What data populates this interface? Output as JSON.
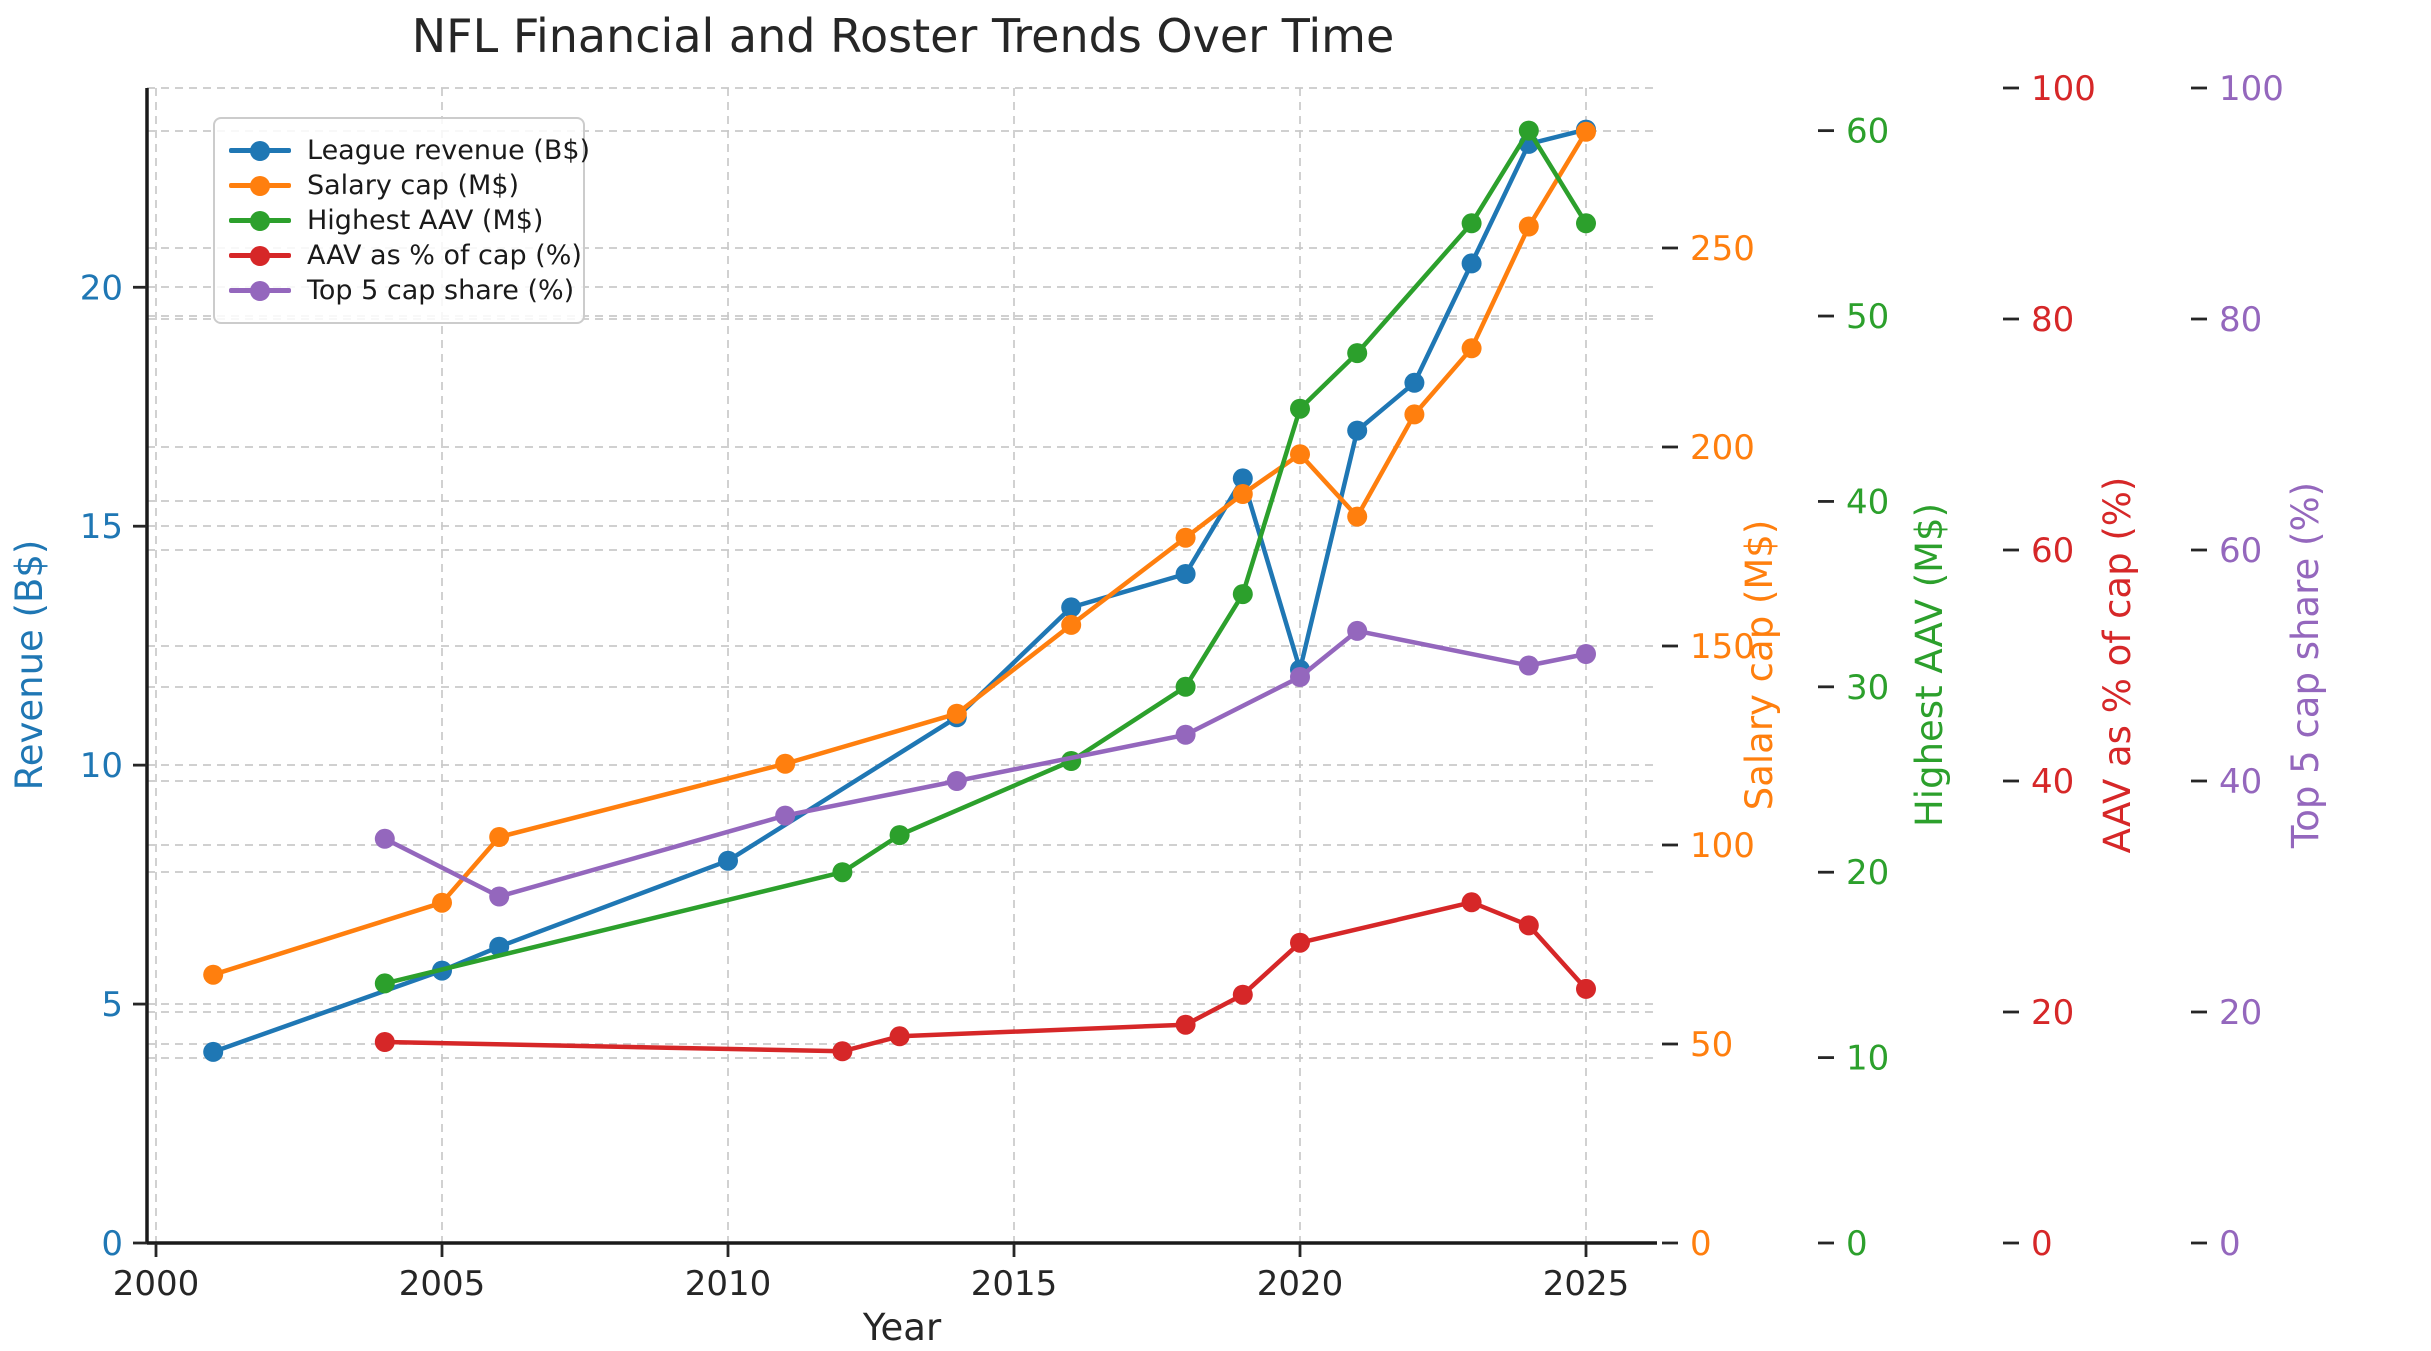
{
  "chart_data": {
    "type": "line",
    "title": "NFL Financial and Roster Trends Over Time",
    "xlabel": "Year",
    "x_ticks": [
      2000,
      2005,
      2010,
      2015,
      2020,
      2025
    ],
    "x_range": [
      1999.84,
      2026.25
    ],
    "grid": true,
    "legend_position": "upper left",
    "colors": {
      "grid": "#c9c9c9",
      "spine": "#1a1a1a",
      "tick_mark": "#262626",
      "tick_label_x": "#262626",
      "title_text": "#262626",
      "background": "#ffffff"
    },
    "axes": [
      {
        "id": "revenue",
        "label": "Revenue (B$)",
        "color": "#1f77b4",
        "side": "left",
        "max": 24.17,
        "ticks": [
          0,
          5,
          10,
          15,
          20
        ]
      },
      {
        "id": "cap",
        "label": "Salary cap (M$)",
        "color": "#ff7f0e",
        "side": "right",
        "max": 290.2,
        "ticks": [
          0,
          50,
          100,
          150,
          200,
          250
        ]
      },
      {
        "id": "aav",
        "label": "Highest AAV (M$)",
        "color": "#2ca02c",
        "side": "right",
        "max": 62.3,
        "ticks": [
          0,
          10,
          20,
          30,
          40,
          50,
          60
        ]
      },
      {
        "id": "pct",
        "label": "AAV as % of cap (%)",
        "color": "#d62728",
        "side": "right",
        "max": 100,
        "ticks": [
          0,
          20,
          40,
          60,
          80,
          100
        ]
      },
      {
        "id": "top5",
        "label": "Top 5 cap share (%)",
        "color": "#9467bd",
        "side": "right",
        "max": 100,
        "ticks": [
          0,
          20,
          40,
          60,
          80,
          100
        ]
      }
    ],
    "series": [
      {
        "name": "League revenue (B$)",
        "color": "#1f77b4",
        "axis": "revenue",
        "points": [
          [
            2001,
            4.0
          ],
          [
            2005,
            5.7
          ],
          [
            2006,
            6.2
          ],
          [
            2010,
            8.0
          ],
          [
            2014,
            11.0
          ],
          [
            2016,
            13.3
          ],
          [
            2018,
            14.0
          ],
          [
            2019,
            16.0
          ],
          [
            2020,
            12.0
          ],
          [
            2021,
            17.0
          ],
          [
            2022,
            18.0
          ],
          [
            2023,
            20.5
          ],
          [
            2024,
            23.0
          ],
          [
            2025,
            23.3
          ]
        ]
      },
      {
        "name": "Salary cap (M$)",
        "color": "#ff7f0e",
        "axis": "cap",
        "points": [
          [
            2001,
            67.4
          ],
          [
            2005,
            85.5
          ],
          [
            2006,
            102.0
          ],
          [
            2011,
            120.4
          ],
          [
            2014,
            133.0
          ],
          [
            2016,
            155.3
          ],
          [
            2018,
            177.2
          ],
          [
            2019,
            188.2
          ],
          [
            2020,
            198.2
          ],
          [
            2021,
            182.5
          ],
          [
            2022,
            208.2
          ],
          [
            2023,
            224.8
          ],
          [
            2024,
            255.4
          ],
          [
            2025,
            279.2
          ]
        ]
      },
      {
        "name": "Highest AAV (M$)",
        "color": "#2ca02c",
        "axis": "aav",
        "points": [
          [
            2004,
            14
          ],
          [
            2012,
            20
          ],
          [
            2013,
            22
          ],
          [
            2016,
            26
          ],
          [
            2018,
            30
          ],
          [
            2019,
            35
          ],
          [
            2020,
            45
          ],
          [
            2021,
            48
          ],
          [
            2023,
            55
          ],
          [
            2024,
            60
          ],
          [
            2025,
            55
          ]
        ]
      },
      {
        "name": "AAV as % of cap (%)",
        "color": "#d62728",
        "axis": "pct",
        "points": [
          [
            2004,
            17.4
          ],
          [
            2012,
            16.6
          ],
          [
            2013,
            17.9
          ],
          [
            2018,
            18.9
          ],
          [
            2019,
            21.5
          ],
          [
            2020,
            26.0
          ],
          [
            2023,
            29.5
          ],
          [
            2024,
            27.5
          ],
          [
            2025,
            22.0
          ]
        ]
      },
      {
        "name": "Top 5 cap share (%)",
        "color": "#9467bd",
        "axis": "top5",
        "points": [
          [
            2004,
            35
          ],
          [
            2006,
            30
          ],
          [
            2011,
            37
          ],
          [
            2014,
            40
          ],
          [
            2018,
            44
          ],
          [
            2020,
            49
          ],
          [
            2021,
            53
          ],
          [
            2024,
            50
          ],
          [
            2025,
            51
          ]
        ]
      }
    ]
  }
}
